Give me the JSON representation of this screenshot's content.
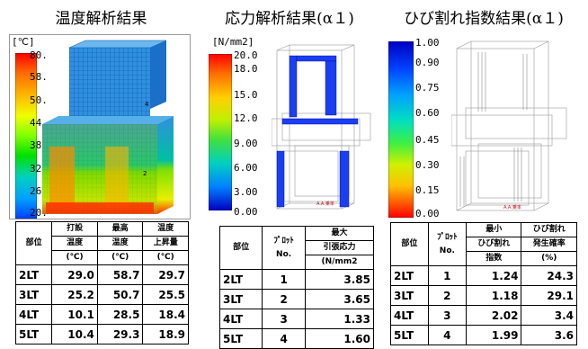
{
  "temperature": {
    "title": "温度解析結果",
    "unit": "[℃]",
    "scale": [
      "80.",
      "58.",
      "50.",
      "44.",
      "38.",
      "32.",
      "26.",
      "20."
    ],
    "table": {
      "h_part": "部位",
      "h_col1": [
        "打設",
        "温度",
        "(℃)"
      ],
      "h_col2": [
        "最高",
        "温度",
        "(℃)"
      ],
      "h_col3": [
        "温度",
        "上昇量",
        "(℃)"
      ],
      "rows": [
        {
          "part": "2LT",
          "a": "29.0",
          "b": "58.7",
          "c": "29.7"
        },
        {
          "part": "3LT",
          "a": "25.2",
          "b": "50.7",
          "c": "25.5"
        },
        {
          "part": "4LT",
          "a": "10.1",
          "b": "28.5",
          "c": "18.4"
        },
        {
          "part": "5LT",
          "a": "10.4",
          "b": "29.3",
          "c": "18.9"
        }
      ]
    }
  },
  "stress": {
    "title": "応力解析結果(α１)",
    "unit": "[N/mm2]",
    "scale": [
      "20.0",
      "18.0",
      "15.0",
      "12.0",
      "9.00",
      "6.00",
      "3.00",
      "0.00"
    ],
    "table": {
      "h_part": "部位",
      "h_no": [
        "ﾌﾟﾛｯﾄ",
        "No."
      ],
      "h_val": [
        "最大",
        "引張応力",
        "(N/mm2"
      ],
      "rows": [
        {
          "part": "2LT",
          "no": "1",
          "v": "3.85"
        },
        {
          "part": "3LT",
          "no": "2",
          "v": "3.65"
        },
        {
          "part": "4LT",
          "no": "3",
          "v": "1.33"
        },
        {
          "part": "5LT",
          "no": "4",
          "v": "1.60"
        }
      ]
    }
  },
  "crack": {
    "title": "ひび割れ指数結果(α１)",
    "scale": [
      "1.00",
      "0.90",
      "0.75",
      "0.60",
      "0.45",
      "0.30",
      "0.15",
      "0.00"
    ],
    "table": {
      "h_part": "部位",
      "h_no": [
        "ﾌﾟﾛｯﾄ",
        "No."
      ],
      "h_idx": [
        "最小",
        "ひび割れ",
        "指数"
      ],
      "h_prob": [
        "ひび割れ",
        "発生確率",
        "(%)"
      ],
      "rows": [
        {
          "part": "2LT",
          "no": "1",
          "idx": "1.24",
          "p": "24.3"
        },
        {
          "part": "3LT",
          "no": "2",
          "idx": "1.18",
          "p": "29.1"
        },
        {
          "part": "4LT",
          "no": "3",
          "idx": "2.02",
          "p": "3.4"
        },
        {
          "part": "5LT",
          "no": "4",
          "idx": "1.99",
          "p": "3.6"
        }
      ]
    }
  },
  "colors": {
    "ramp_hot": [
      "#ff0000",
      "#ff6a00",
      "#ffb400",
      "#f0ff00",
      "#7fff00",
      "#00e000",
      "#00d0a0",
      "#00a0ff",
      "#0040ff"
    ],
    "ramp_blue": [
      "#0000c0",
      "#0030ff",
      "#00a0ff",
      "#00e0c0",
      "#40f040",
      "#c0f000",
      "#ffe000",
      "#ff8000",
      "#ff0000"
    ]
  }
}
